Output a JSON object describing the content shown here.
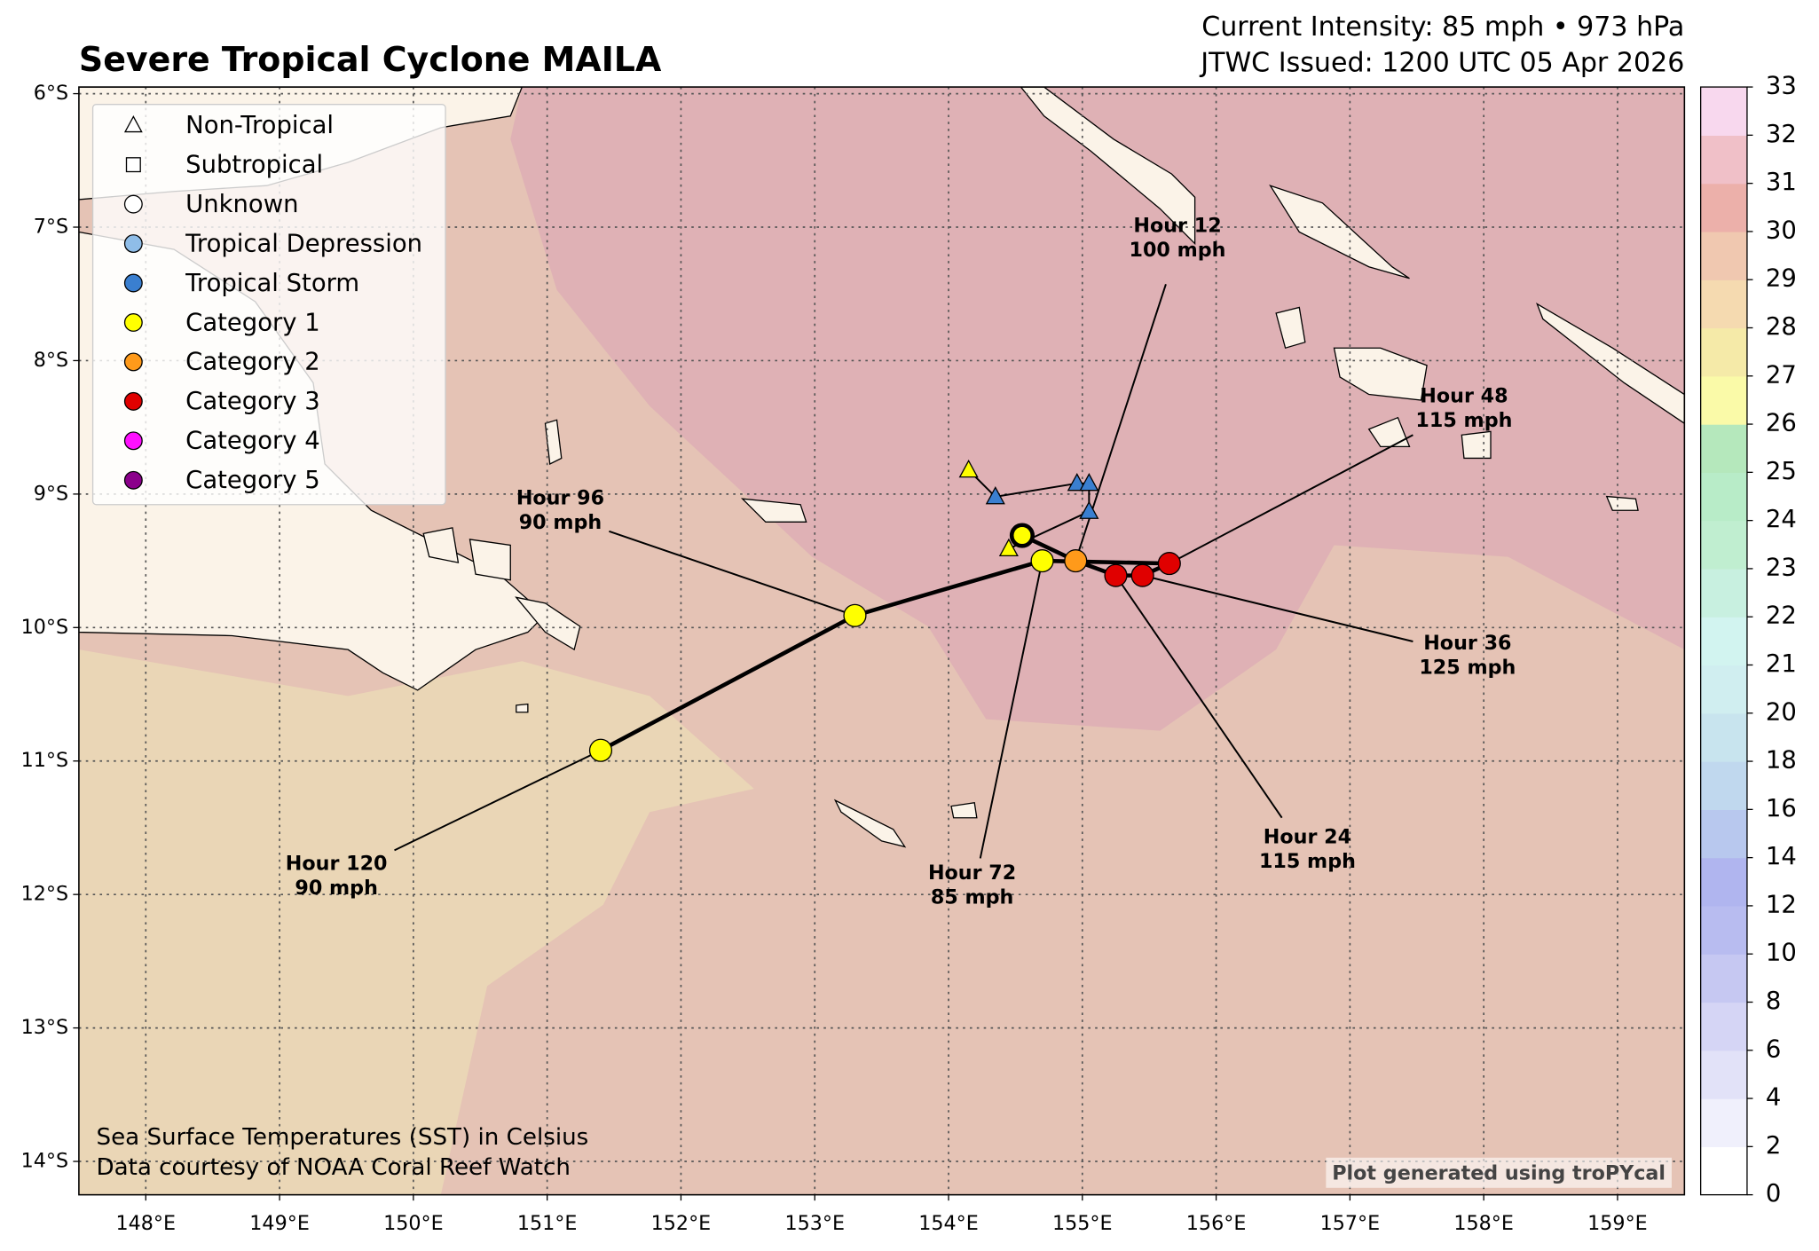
{
  "chart_data": {
    "type": "track",
    "title": "Severe Tropical Cyclone MAILA",
    "info_lines": [
      "Current Intensity: 85 mph • 973 hPa",
      "JTWC Issued: 1200 UTC 05 Apr 2026"
    ],
    "xlim": [
      147.5,
      159.5
    ],
    "ylim": [
      -14.25,
      -5.95
    ],
    "xticks": [
      {
        "value": 148,
        "label": "148°E"
      },
      {
        "value": 149,
        "label": "149°E"
      },
      {
        "value": 150,
        "label": "150°E"
      },
      {
        "value": 151,
        "label": "151°E"
      },
      {
        "value": 152,
        "label": "152°E"
      },
      {
        "value": 153,
        "label": "153°E"
      },
      {
        "value": 154,
        "label": "154°E"
      },
      {
        "value": 155,
        "label": "155°E"
      },
      {
        "value": 156,
        "label": "156°E"
      },
      {
        "value": 157,
        "label": "157°E"
      },
      {
        "value": 158,
        "label": "158°E"
      },
      {
        "value": 159,
        "label": "159°E"
      }
    ],
    "yticks": [
      {
        "value": -6,
        "label": "6°S"
      },
      {
        "value": -7,
        "label": "7°S"
      },
      {
        "value": -8,
        "label": "8°S"
      },
      {
        "value": -9,
        "label": "9°S"
      },
      {
        "value": -10,
        "label": "10°S"
      },
      {
        "value": -11,
        "label": "11°S"
      },
      {
        "value": -12,
        "label": "12°S"
      },
      {
        "value": -13,
        "label": "13°S"
      },
      {
        "value": -14,
        "label": "14°S"
      }
    ],
    "grid": true,
    "legend": {
      "corner": "upper left",
      "entries": [
        {
          "name": "Non-Tropical",
          "marker": "triangle",
          "color": "#ffffff"
        },
        {
          "name": "Subtropical",
          "marker": "square",
          "color": "#ffffff"
        },
        {
          "name": "Unknown",
          "marker": "circle",
          "color": "#ffffff"
        },
        {
          "name": "Tropical Depression",
          "marker": "circle",
          "color": "#8fbde8"
        },
        {
          "name": "Tropical Storm",
          "marker": "circle",
          "color": "#3a7fd0"
        },
        {
          "name": "Category 1",
          "marker": "circle",
          "color": "#ffff00"
        },
        {
          "name": "Category 2",
          "marker": "circle",
          "color": "#ff9a1a"
        },
        {
          "name": "Category 3",
          "marker": "circle",
          "color": "#e00000"
        },
        {
          "name": "Category 4",
          "marker": "circle",
          "color": "#ff10ff"
        },
        {
          "name": "Category 5",
          "marker": "circle",
          "color": "#8b008b"
        }
      ]
    },
    "past_track": {
      "lon": [
        154.15,
        154.35,
        154.96,
        155.05,
        155.05,
        154.45
      ],
      "lat": [
        -8.82,
        -9.02,
        -8.92,
        -8.92,
        -9.13,
        -9.41
      ],
      "colors": [
        "#ffff00",
        "#3a7fd0",
        "#3a7fd0",
        "#3a7fd0",
        "#3a7fd0",
        "#ffff00"
      ],
      "marker": "triangle"
    },
    "forecast_track": {
      "lon": [
        154.55,
        154.95,
        155.25,
        155.45,
        155.65,
        154.7,
        153.3,
        151.4
      ],
      "lat": [
        -9.31,
        -9.5,
        -9.61,
        -9.61,
        -9.52,
        -9.5,
        -9.91,
        -10.92
      ],
      "colors": [
        "#ffff00",
        "#ff9a1a",
        "#e00000",
        "#e00000",
        "#e00000",
        "#ffff00",
        "#ffff00",
        "#ffff00"
      ],
      "labels": [
        null,
        [
          "Hour 12",
          "100 mph"
        ],
        [
          "Hour 24",
          "115 mph"
        ],
        [
          "Hour 36",
          "125 mph"
        ],
        [
          "Hour 48",
          "115 mph"
        ],
        [
          "Hour 72",
          "85 mph"
        ],
        [
          "Hour 96",
          "90 mph"
        ],
        [
          "Hour 120",
          "90 mph"
        ]
      ]
    },
    "colorbar": {
      "ticks": [
        0,
        2,
        4,
        6,
        8,
        10,
        12,
        14,
        16,
        18,
        20,
        21,
        22,
        23,
        24,
        25,
        26,
        27,
        28,
        29,
        30,
        31,
        32,
        33
      ],
      "colors": [
        "#ffffff",
        "#f0f0fc",
        "#e2e2f8",
        "#d5d5f5",
        "#c6c8f2",
        "#b8bcf0",
        "#b0b5ef",
        "#b8c8ee",
        "#c0d8ee",
        "#c8e4ee",
        "#d0eef0",
        "#d2f4f0",
        "#c8f0e0",
        "#c0eed0",
        "#b8ecc8",
        "#b5e8bc",
        "#fafaa8",
        "#f5eaa8",
        "#f5dab0",
        "#f0c8b0",
        "#ecb0aa",
        "#f0c0c8",
        "#f8d8ee"
      ]
    },
    "notes": [
      "Sea Surface Temperatures (SST) in Celsius",
      "Data courtesy of NOAA Coral Reef Watch"
    ],
    "credit": "Plot generated using troPYcal"
  }
}
